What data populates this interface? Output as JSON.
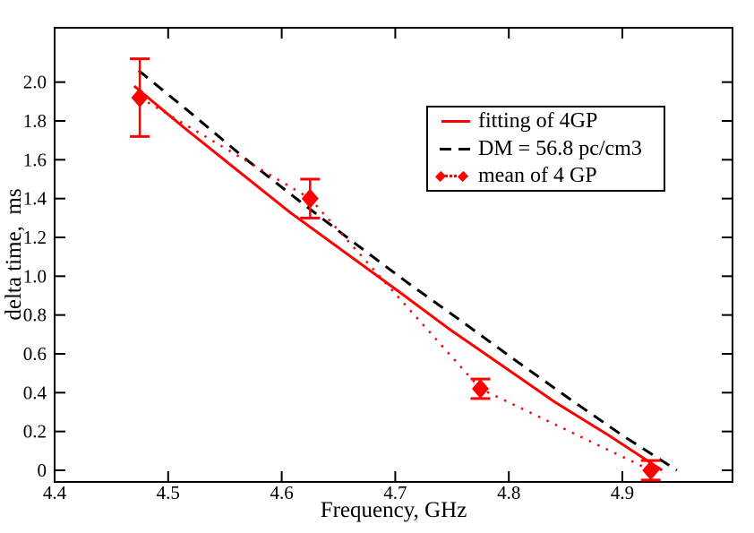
{
  "figure": {
    "background": "#ffffff",
    "frame_color": "#000000"
  },
  "chart_data": {
    "type": "line",
    "title": "",
    "xlabel": "Frequency, GHz",
    "ylabel": "delta time,  ms",
    "xlim": [
      4.4,
      4.997
    ],
    "ylim": [
      -0.06,
      2.28
    ],
    "grid": false,
    "xticks": [
      {
        "v": 4.4,
        "label": "4.4"
      },
      {
        "v": 4.5,
        "label": "4.5"
      },
      {
        "v": 4.6,
        "label": "4.6"
      },
      {
        "v": 4.7,
        "label": "4.7"
      },
      {
        "v": 4.8,
        "label": "4.8"
      },
      {
        "v": 4.9,
        "label": "4.9"
      }
    ],
    "yticks": [
      {
        "v": 0.0,
        "label": "0"
      },
      {
        "v": 0.2,
        "label": "0.2"
      },
      {
        "v": 0.4,
        "label": "0.4"
      },
      {
        "v": 0.6,
        "label": "0.6"
      },
      {
        "v": 0.8,
        "label": "0.8"
      },
      {
        "v": 1.0,
        "label": "1.0"
      },
      {
        "v": 1.2,
        "label": "1.2"
      },
      {
        "v": 1.4,
        "label": "1.4"
      },
      {
        "v": 1.6,
        "label": "1.6"
      },
      {
        "v": 1.8,
        "label": "1.8"
      },
      {
        "v": 2.0,
        "label": "2.0"
      }
    ],
    "series": [
      {
        "name": "fitting of 4GP",
        "style": "solid",
        "color": "#ff0000",
        "stroke_width": 3,
        "points": [
          [
            4.47,
            1.98
          ],
          [
            4.513,
            1.77
          ],
          [
            4.56,
            1.55
          ],
          [
            4.607,
            1.33
          ],
          [
            4.654,
            1.13
          ],
          [
            4.701,
            0.93
          ],
          [
            4.747,
            0.73
          ],
          [
            4.794,
            0.54
          ],
          [
            4.841,
            0.35
          ],
          [
            4.888,
            0.18
          ],
          [
            4.935,
            0.0
          ]
        ]
      },
      {
        "name": "DM = 56.8 pc/cm3",
        "style": "dashed",
        "color": "#000000",
        "stroke_width": 3,
        "points": [
          [
            4.474,
            2.06
          ],
          [
            4.52,
            1.84
          ],
          [
            4.567,
            1.61
          ],
          [
            4.615,
            1.39
          ],
          [
            4.662,
            1.18
          ],
          [
            4.71,
            0.97
          ],
          [
            4.758,
            0.77
          ],
          [
            4.805,
            0.57
          ],
          [
            4.853,
            0.37
          ],
          [
            4.9,
            0.18
          ],
          [
            4.948,
            0.0
          ]
        ]
      },
      {
        "name": "mean of 4 GP",
        "style": "dotted",
        "color": "#ff0000",
        "stroke_width": 2.5,
        "marker": "diamond",
        "points": [
          [
            4.475,
            1.92
          ],
          [
            4.625,
            1.4
          ],
          [
            4.775,
            0.42
          ],
          [
            4.925,
            0.0
          ]
        ],
        "error_bars": [
          0.2,
          0.1,
          0.05,
          0.05
        ]
      }
    ],
    "legend": {
      "position": "upper-right"
    }
  }
}
